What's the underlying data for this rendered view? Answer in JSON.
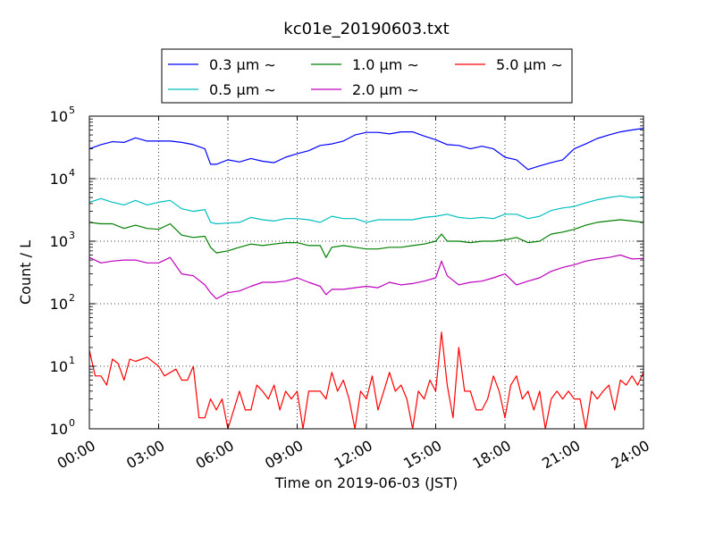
{
  "chart_data": {
    "type": "line",
    "title": "kc01e_20190603.txt",
    "xlabel": "Time on 2019-06-03 (JST)",
    "ylabel": "Count / L",
    "yscale": "log",
    "xlim": [
      "00:00",
      "24:00"
    ],
    "ylim": [
      1,
      100000
    ],
    "grid": true,
    "legend_position": "top",
    "x_ticks": [
      "00:00",
      "03:00",
      "06:00",
      "09:00",
      "12:00",
      "15:00",
      "18:00",
      "21:00",
      "24:00"
    ],
    "y_ticks": [
      {
        "base": "10",
        "exp": "0",
        "value": 1
      },
      {
        "base": "10",
        "exp": "1",
        "value": 10
      },
      {
        "base": "10",
        "exp": "2",
        "value": 100
      },
      {
        "base": "10",
        "exp": "3",
        "value": 1000
      },
      {
        "base": "10",
        "exp": "4",
        "value": 10000
      },
      {
        "base": "10",
        "exp": "5",
        "value": 100000
      }
    ],
    "series": [
      {
        "name": "0.3 μm ∼",
        "color": "#0000ff",
        "points": [
          [
            "00:00",
            30000
          ],
          [
            "00:30",
            35000
          ],
          [
            "01:00",
            39000
          ],
          [
            "01:30",
            38000
          ],
          [
            "02:00",
            45000
          ],
          [
            "02:30",
            40000
          ],
          [
            "03:00",
            40000
          ],
          [
            "03:30",
            40000
          ],
          [
            "04:00",
            38000
          ],
          [
            "04:30",
            35000
          ],
          [
            "05:00",
            30000
          ],
          [
            "05:15",
            17000
          ],
          [
            "05:30",
            17000
          ],
          [
            "06:00",
            20000
          ],
          [
            "06:30",
            18500
          ],
          [
            "07:00",
            21000
          ],
          [
            "07:30",
            19000
          ],
          [
            "08:00",
            18000
          ],
          [
            "08:30",
            22000
          ],
          [
            "09:00",
            25000
          ],
          [
            "09:30",
            28000
          ],
          [
            "10:00",
            34000
          ],
          [
            "10:30",
            36000
          ],
          [
            "11:00",
            40000
          ],
          [
            "11:30",
            50000
          ],
          [
            "12:00",
            55000
          ],
          [
            "12:30",
            55000
          ],
          [
            "13:00",
            52000
          ],
          [
            "13:30",
            56000
          ],
          [
            "14:00",
            56000
          ],
          [
            "14:30",
            48000
          ],
          [
            "15:00",
            42000
          ],
          [
            "15:30",
            35000
          ],
          [
            "16:00",
            34000
          ],
          [
            "16:30",
            30000
          ],
          [
            "17:00",
            33000
          ],
          [
            "17:30",
            30000
          ],
          [
            "18:00",
            22000
          ],
          [
            "18:30",
            20000
          ],
          [
            "19:00",
            14000
          ],
          [
            "19:30",
            16000
          ],
          [
            "20:00",
            18000
          ],
          [
            "20:30",
            20000
          ],
          [
            "21:00",
            30000
          ],
          [
            "21:30",
            36000
          ],
          [
            "22:00",
            44000
          ],
          [
            "22:30",
            50000
          ],
          [
            "23:00",
            56000
          ],
          [
            "23:30",
            60000
          ],
          [
            "24:00",
            64000
          ]
        ]
      },
      {
        "name": "0.5 μm ∼",
        "color": "#00bfbf",
        "points": [
          [
            "00:00",
            4200
          ],
          [
            "00:30",
            4800
          ],
          [
            "01:00",
            4200
          ],
          [
            "01:30",
            3800
          ],
          [
            "02:00",
            4500
          ],
          [
            "02:30",
            3800
          ],
          [
            "03:00",
            4200
          ],
          [
            "03:30",
            4500
          ],
          [
            "04:00",
            3300
          ],
          [
            "04:30",
            3000
          ],
          [
            "05:00",
            3200
          ],
          [
            "05:15",
            2000
          ],
          [
            "05:30",
            1900
          ],
          [
            "06:00",
            1950
          ],
          [
            "06:30",
            2000
          ],
          [
            "07:00",
            2400
          ],
          [
            "07:30",
            2200
          ],
          [
            "08:00",
            2100
          ],
          [
            "08:30",
            2300
          ],
          [
            "09:00",
            2300
          ],
          [
            "09:30",
            2200
          ],
          [
            "10:00",
            2000
          ],
          [
            "10:30",
            2500
          ],
          [
            "11:00",
            2300
          ],
          [
            "11:30",
            2300
          ],
          [
            "12:00",
            2000
          ],
          [
            "12:30",
            2200
          ],
          [
            "13:00",
            2200
          ],
          [
            "13:30",
            2200
          ],
          [
            "14:00",
            2200
          ],
          [
            "14:30",
            2400
          ],
          [
            "15:00",
            2500
          ],
          [
            "15:30",
            2700
          ],
          [
            "16:00",
            2400
          ],
          [
            "16:30",
            2300
          ],
          [
            "17:00",
            2400
          ],
          [
            "17:30",
            2300
          ],
          [
            "18:00",
            2700
          ],
          [
            "18:30",
            2700
          ],
          [
            "19:00",
            2300
          ],
          [
            "19:30",
            2500
          ],
          [
            "20:00",
            3100
          ],
          [
            "20:30",
            3400
          ],
          [
            "21:00",
            3600
          ],
          [
            "21:30",
            4100
          ],
          [
            "22:00",
            4600
          ],
          [
            "22:30",
            5000
          ],
          [
            "23:00",
            5300
          ],
          [
            "23:30",
            5000
          ],
          [
            "24:00",
            5100
          ]
        ]
      },
      {
        "name": "1.0 μm ∼",
        "color": "#008000",
        "points": [
          [
            "00:00",
            2000
          ],
          [
            "00:30",
            1900
          ],
          [
            "01:00",
            1900
          ],
          [
            "01:30",
            1600
          ],
          [
            "02:00",
            1800
          ],
          [
            "02:30",
            1600
          ],
          [
            "03:00",
            1550
          ],
          [
            "03:30",
            1900
          ],
          [
            "04:00",
            1250
          ],
          [
            "04:30",
            1150
          ],
          [
            "05:00",
            1200
          ],
          [
            "05:15",
            800
          ],
          [
            "05:30",
            650
          ],
          [
            "06:00",
            700
          ],
          [
            "06:30",
            800
          ],
          [
            "07:00",
            900
          ],
          [
            "07:30",
            850
          ],
          [
            "08:00",
            900
          ],
          [
            "08:30",
            950
          ],
          [
            "09:00",
            950
          ],
          [
            "09:30",
            850
          ],
          [
            "10:00",
            850
          ],
          [
            "10:15",
            550
          ],
          [
            "10:30",
            800
          ],
          [
            "11:00",
            850
          ],
          [
            "11:30",
            800
          ],
          [
            "12:00",
            750
          ],
          [
            "12:30",
            750
          ],
          [
            "13:00",
            800
          ],
          [
            "13:30",
            800
          ],
          [
            "14:00",
            850
          ],
          [
            "14:30",
            900
          ],
          [
            "15:00",
            1000
          ],
          [
            "15:15",
            1300
          ],
          [
            "15:30",
            1000
          ],
          [
            "16:00",
            1000
          ],
          [
            "16:30",
            950
          ],
          [
            "17:00",
            1000
          ],
          [
            "17:30",
            1000
          ],
          [
            "18:00",
            1050
          ],
          [
            "18:30",
            1150
          ],
          [
            "19:00",
            950
          ],
          [
            "19:30",
            1000
          ],
          [
            "20:00",
            1300
          ],
          [
            "20:30",
            1400
          ],
          [
            "21:00",
            1550
          ],
          [
            "21:30",
            1800
          ],
          [
            "22:00",
            2000
          ],
          [
            "22:30",
            2100
          ],
          [
            "23:00",
            2200
          ],
          [
            "23:30",
            2100
          ],
          [
            "24:00",
            2000
          ]
        ]
      },
      {
        "name": "2.0 μm ∼",
        "color": "#bf00bf",
        "points": [
          [
            "00:00",
            550
          ],
          [
            "00:30",
            450
          ],
          [
            "01:00",
            480
          ],
          [
            "01:30",
            500
          ],
          [
            "02:00",
            500
          ],
          [
            "02:30",
            450
          ],
          [
            "03:00",
            450
          ],
          [
            "03:30",
            550
          ],
          [
            "04:00",
            300
          ],
          [
            "04:30",
            280
          ],
          [
            "05:00",
            200
          ],
          [
            "05:15",
            150
          ],
          [
            "05:30",
            120
          ],
          [
            "06:00",
            150
          ],
          [
            "06:30",
            160
          ],
          [
            "07:00",
            190
          ],
          [
            "07:30",
            220
          ],
          [
            "08:00",
            220
          ],
          [
            "08:30",
            230
          ],
          [
            "09:00",
            260
          ],
          [
            "09:30",
            220
          ],
          [
            "10:00",
            190
          ],
          [
            "10:15",
            140
          ],
          [
            "10:30",
            170
          ],
          [
            "11:00",
            170
          ],
          [
            "11:30",
            180
          ],
          [
            "12:00",
            190
          ],
          [
            "12:30",
            180
          ],
          [
            "13:00",
            220
          ],
          [
            "13:30",
            200
          ],
          [
            "14:00",
            210
          ],
          [
            "14:30",
            230
          ],
          [
            "15:00",
            260
          ],
          [
            "15:15",
            480
          ],
          [
            "15:30",
            280
          ],
          [
            "16:00",
            200
          ],
          [
            "16:30",
            220
          ],
          [
            "17:00",
            230
          ],
          [
            "17:30",
            260
          ],
          [
            "18:00",
            300
          ],
          [
            "18:30",
            200
          ],
          [
            "19:00",
            230
          ],
          [
            "19:30",
            260
          ],
          [
            "20:00",
            330
          ],
          [
            "20:30",
            380
          ],
          [
            "21:00",
            420
          ],
          [
            "21:30",
            480
          ],
          [
            "22:00",
            520
          ],
          [
            "22:30",
            550
          ],
          [
            "23:00",
            600
          ],
          [
            "23:30",
            520
          ],
          [
            "24:00",
            530
          ]
        ]
      },
      {
        "name": "5.0 μm ∼",
        "color": "#ff0000",
        "points": [
          [
            "00:00",
            18
          ],
          [
            "00:15",
            7
          ],
          [
            "00:30",
            7
          ],
          [
            "00:45",
            5
          ],
          [
            "01:00",
            13
          ],
          [
            "01:15",
            11
          ],
          [
            "01:30",
            6
          ],
          [
            "01:45",
            13
          ],
          [
            "02:00",
            12
          ],
          [
            "02:30",
            14
          ],
          [
            "03:00",
            10
          ],
          [
            "03:15",
            7
          ],
          [
            "03:45",
            9
          ],
          [
            "04:00",
            6
          ],
          [
            "04:15",
            6
          ],
          [
            "04:30",
            10
          ],
          [
            "04:45",
            1.5
          ],
          [
            "05:00",
            1.5
          ],
          [
            "05:15",
            3
          ],
          [
            "05:30",
            2
          ],
          [
            "05:45",
            3
          ],
          [
            "06:00",
            1
          ],
          [
            "06:15",
            2
          ],
          [
            "06:30",
            4
          ],
          [
            "06:45",
            2
          ],
          [
            "07:00",
            2
          ],
          [
            "07:15",
            5
          ],
          [
            "07:30",
            4
          ],
          [
            "07:45",
            3
          ],
          [
            "08:00",
            5
          ],
          [
            "08:15",
            2
          ],
          [
            "08:30",
            4
          ],
          [
            "08:45",
            3
          ],
          [
            "09:00",
            4
          ],
          [
            "09:15",
            1
          ],
          [
            "09:30",
            4
          ],
          [
            "09:45",
            4
          ],
          [
            "10:00",
            4
          ],
          [
            "10:15",
            3
          ],
          [
            "10:30",
            8
          ],
          [
            "10:45",
            4
          ],
          [
            "11:00",
            6
          ],
          [
            "11:15",
            3
          ],
          [
            "11:30",
            1
          ],
          [
            "11:45",
            4
          ],
          [
            "12:00",
            3
          ],
          [
            "12:15",
            7
          ],
          [
            "12:30",
            2
          ],
          [
            "12:45",
            4
          ],
          [
            "13:00",
            8
          ],
          [
            "13:15",
            4
          ],
          [
            "13:30",
            5
          ],
          [
            "13:45",
            3
          ],
          [
            "14:00",
            1
          ],
          [
            "14:15",
            4
          ],
          [
            "14:30",
            3
          ],
          [
            "14:45",
            6
          ],
          [
            "15:00",
            4
          ],
          [
            "15:15",
            35
          ],
          [
            "15:30",
            5
          ],
          [
            "15:45",
            1.5
          ],
          [
            "16:00",
            20
          ],
          [
            "16:15",
            4
          ],
          [
            "16:30",
            4
          ],
          [
            "16:45",
            2
          ],
          [
            "17:00",
            2
          ],
          [
            "17:15",
            3
          ],
          [
            "17:30",
            7
          ],
          [
            "17:45",
            4
          ],
          [
            "18:00",
            1.5
          ],
          [
            "18:15",
            5
          ],
          [
            "18:30",
            7
          ],
          [
            "18:45",
            3
          ],
          [
            "19:00",
            4
          ],
          [
            "19:15",
            2
          ],
          [
            "19:30",
            4
          ],
          [
            "19:45",
            1
          ],
          [
            "20:00",
            3
          ],
          [
            "20:15",
            4
          ],
          [
            "20:30",
            3
          ],
          [
            "20:45",
            4
          ],
          [
            "21:00",
            3
          ],
          [
            "21:15",
            3
          ],
          [
            "21:30",
            1
          ],
          [
            "21:45",
            4
          ],
          [
            "22:00",
            3
          ],
          [
            "22:15",
            4
          ],
          [
            "22:30",
            5
          ],
          [
            "22:45",
            2
          ],
          [
            "23:00",
            6
          ],
          [
            "23:15",
            5
          ],
          [
            "23:30",
            7
          ],
          [
            "23:45",
            5
          ],
          [
            "24:00",
            8
          ]
        ]
      }
    ]
  }
}
